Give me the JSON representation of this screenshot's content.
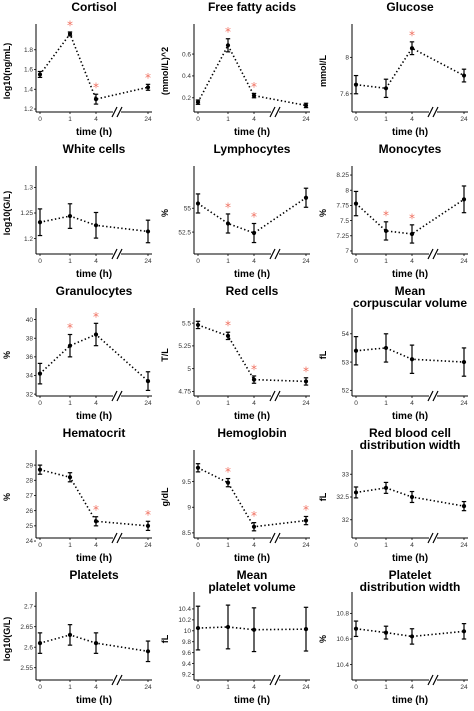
{
  "chart_data": [
    {
      "type": "line",
      "title": [
        "Cortisol"
      ],
      "ylabel": "log10(ng/mL)",
      "xlabel": "time (h)",
      "x": [
        0,
        1,
        4,
        24
      ],
      "xticks": [
        "0",
        "1",
        "4",
        "24"
      ],
      "yticks": [
        1.2,
        1.4,
        1.6,
        1.8
      ],
      "ylim": [
        1.17,
        2.0
      ],
      "values": [
        1.55,
        1.96,
        1.3,
        1.42
      ],
      "errors": [
        0.03,
        0.02,
        0.05,
        0.03
      ],
      "significant": [
        false,
        true,
        true,
        true
      ],
      "star": "*"
    },
    {
      "type": "line",
      "title": [
        "Free fatty acids"
      ],
      "ylabel": "(mmol/L)^2",
      "xlabel": "time (h)",
      "x": [
        0,
        1,
        4,
        24
      ],
      "xticks": [
        "0",
        "1",
        "4",
        "24"
      ],
      "yticks": [
        0.2,
        0.4,
        0.6
      ],
      "ylim": [
        0.07,
        0.82
      ],
      "values": [
        0.16,
        0.68,
        0.22,
        0.13
      ],
      "errors": [
        0.02,
        0.06,
        0.02,
        0.02
      ],
      "significant": [
        false,
        true,
        true,
        false
      ],
      "star": "*"
    },
    {
      "type": "line",
      "title": [
        "Glucose"
      ],
      "ylabel": "mmol/L",
      "xlabel": "time (h)",
      "x": [
        0,
        1,
        4,
        24
      ],
      "xticks": [
        "0",
        "1",
        "4",
        "24"
      ],
      "yticks": [
        7.6,
        8.0
      ],
      "ylim": [
        7.4,
        8.3
      ],
      "values": [
        7.7,
        7.66,
        8.1,
        7.8
      ],
      "errors": [
        0.1,
        0.1,
        0.07,
        0.07
      ],
      "significant": [
        false,
        false,
        true,
        false
      ],
      "star": "*"
    },
    {
      "type": "line",
      "title": [
        "White cells"
      ],
      "ylabel": "log10(G/L)",
      "xlabel": "time (h)",
      "x": [
        0,
        1,
        4,
        24
      ],
      "xticks": [
        "0",
        "1",
        "4",
        "24"
      ],
      "yticks": [
        1.2,
        1.25,
        1.3
      ],
      "ylim": [
        1.17,
        1.33
      ],
      "values": [
        1.232,
        1.244,
        1.226,
        1.214
      ],
      "errors": [
        0.026,
        0.024,
        0.025,
        0.022
      ],
      "significant": [
        false,
        false,
        false,
        false
      ],
      "star": "*"
    },
    {
      "type": "line",
      "title": [
        "Lymphocytes"
      ],
      "ylabel": "%",
      "xlabel": "time (h)",
      "x": [
        0,
        1,
        4,
        24
      ],
      "xticks": [
        "0",
        "1",
        "4",
        "24"
      ],
      "yticks": [
        52.5,
        55.0
      ],
      "ylim": [
        50.2,
        58.8
      ],
      "values": [
        55.5,
        53.4,
        52.4,
        56.1
      ],
      "errors": [
        1.0,
        1.0,
        1.0,
        1.0
      ],
      "significant": [
        false,
        true,
        true,
        false
      ],
      "star": "*"
    },
    {
      "type": "line",
      "title": [
        "Monocytes"
      ],
      "ylabel": "%",
      "xlabel": "time (h)",
      "x": [
        0,
        1,
        4,
        24
      ],
      "xticks": [
        "0",
        "1",
        "4",
        "24"
      ],
      "yticks": [
        7.0,
        7.25,
        7.5,
        7.75,
        8.0,
        8.25
      ],
      "ylim": [
        6.95,
        8.3
      ],
      "values": [
        7.78,
        7.33,
        7.28,
        7.85
      ],
      "errors": [
        0.2,
        0.15,
        0.15,
        0.22
      ],
      "significant": [
        false,
        true,
        true,
        false
      ],
      "star": "*"
    },
    {
      "type": "line",
      "title": [
        "Granulocytes"
      ],
      "ylabel": "%",
      "xlabel": "time (h)",
      "x": [
        0,
        1,
        4,
        24
      ],
      "xticks": [
        "0",
        "1",
        "4",
        "24"
      ],
      "yticks": [
        32,
        34,
        36,
        38,
        40
      ],
      "ylim": [
        31.8,
        40.6
      ],
      "values": [
        34.2,
        37.2,
        38.4,
        33.4
      ],
      "errors": [
        1.1,
        1.2,
        1.2,
        1.0
      ],
      "significant": [
        false,
        true,
        true,
        false
      ],
      "star": "*"
    },
    {
      "type": "line",
      "title": [
        "Red cells"
      ],
      "ylabel": "T/L",
      "xlabel": "time (h)",
      "x": [
        0,
        1,
        4,
        24
      ],
      "xticks": [
        "0",
        "1",
        "4",
        "24"
      ],
      "yticks": [
        4.75,
        5.0,
        5.25,
        5.5
      ],
      "ylim": [
        4.7,
        5.6
      ],
      "values": [
        5.48,
        5.36,
        4.88,
        4.86
      ],
      "errors": [
        0.04,
        0.04,
        0.04,
        0.04
      ],
      "significant": [
        false,
        true,
        true,
        true
      ],
      "star": "*"
    },
    {
      "type": "line",
      "title": [
        "Mean",
        "corpuscular volume"
      ],
      "ylabel": "fL",
      "xlabel": "time (h)",
      "x": [
        0,
        1,
        4,
        24
      ],
      "xticks": [
        "0",
        "1",
        "4",
        "24"
      ],
      "yticks": [
        52,
        53,
        54
      ],
      "ylim": [
        51.8,
        54.7
      ],
      "values": [
        53.4,
        53.5,
        53.1,
        53.0
      ],
      "errors": [
        0.5,
        0.5,
        0.5,
        0.5
      ],
      "significant": [
        false,
        false,
        false,
        false
      ],
      "star": "*"
    },
    {
      "type": "line",
      "title": [
        "Hematocrit"
      ],
      "ylabel": "%",
      "xlabel": "time (h)",
      "x": [
        0,
        1,
        4,
        24
      ],
      "xticks": [
        "0",
        "1",
        "4",
        "24"
      ],
      "yticks": [
        24,
        25,
        26,
        27,
        28,
        29
      ],
      "ylim": [
        24.2,
        29.6
      ],
      "values": [
        28.7,
        28.2,
        25.3,
        25.0
      ],
      "errors": [
        0.3,
        0.3,
        0.3,
        0.3
      ],
      "significant": [
        false,
        false,
        true,
        true
      ],
      "star": "*"
    },
    {
      "type": "line",
      "title": [
        "Hemoglobin"
      ],
      "ylabel": "g/dL",
      "xlabel": "time (h)",
      "x": [
        0,
        1,
        4,
        24
      ],
      "xticks": [
        "0",
        "1",
        "4",
        "24"
      ],
      "yticks": [
        8.5,
        9.0,
        9.5
      ],
      "ylim": [
        8.4,
        10.0
      ],
      "values": [
        9.77,
        9.48,
        8.62,
        8.74
      ],
      "errors": [
        0.08,
        0.08,
        0.08,
        0.08
      ],
      "significant": [
        false,
        true,
        true,
        true
      ],
      "star": "*"
    },
    {
      "type": "line",
      "title": [
        "Red blood cell",
        "distribution width"
      ],
      "ylabel": "fL",
      "xlabel": "time (h)",
      "x": [
        0,
        1,
        4,
        24
      ],
      "xticks": [
        "0",
        "1",
        "4",
        "24"
      ],
      "yticks": [
        32.0,
        32.5,
        33.0
      ],
      "ylim": [
        31.6,
        33.4
      ],
      "values": [
        32.6,
        32.7,
        32.5,
        32.3
      ],
      "errors": [
        0.12,
        0.12,
        0.12,
        0.1
      ],
      "significant": [
        false,
        false,
        false,
        false
      ],
      "star": "*"
    },
    {
      "type": "line",
      "title": [
        "Platelets"
      ],
      "ylabel": "log10(G/L)",
      "xlabel": "time (h)",
      "x": [
        0,
        1,
        4,
        24
      ],
      "xticks": [
        "0",
        "1",
        "4",
        "24"
      ],
      "yticks": [
        2.55,
        2.6,
        2.65,
        2.7
      ],
      "ylim": [
        2.52,
        2.72
      ],
      "values": [
        2.61,
        2.63,
        2.61,
        2.59
      ],
      "errors": [
        0.025,
        0.025,
        0.025,
        0.025
      ],
      "significant": [
        false,
        false,
        false,
        false
      ],
      "star": "*"
    },
    {
      "type": "line",
      "title": [
        "Mean",
        "platelet volume"
      ],
      "ylabel": "fL",
      "xlabel": "time (h)",
      "x": [
        0,
        1,
        4,
        24
      ],
      "xticks": [
        "0",
        "1",
        "4",
        "24"
      ],
      "yticks": [
        9.2,
        9.4,
        9.6,
        9.8,
        10.0,
        10.2,
        10.4
      ],
      "ylim": [
        9.1,
        10.6
      ],
      "values": [
        10.05,
        10.07,
        10.02,
        10.03
      ],
      "errors": [
        0.4,
        0.4,
        0.4,
        0.4
      ],
      "significant": [
        false,
        false,
        false,
        false
      ],
      "star": "*"
    },
    {
      "type": "line",
      "title": [
        "Platelet",
        "distribution width"
      ],
      "ylabel": "%",
      "xlabel": "time (h)",
      "x": [
        0,
        1,
        4,
        24
      ],
      "xticks": [
        "0",
        "1",
        "4",
        "24"
      ],
      "yticks": [
        10.4,
        10.6,
        10.8
      ],
      "ylim": [
        10.28,
        10.92
      ],
      "values": [
        10.68,
        10.65,
        10.62,
        10.66
      ],
      "errors": [
        0.06,
        0.05,
        0.06,
        0.06
      ],
      "significant": [
        false,
        false,
        false,
        false
      ],
      "star": "*"
    }
  ]
}
